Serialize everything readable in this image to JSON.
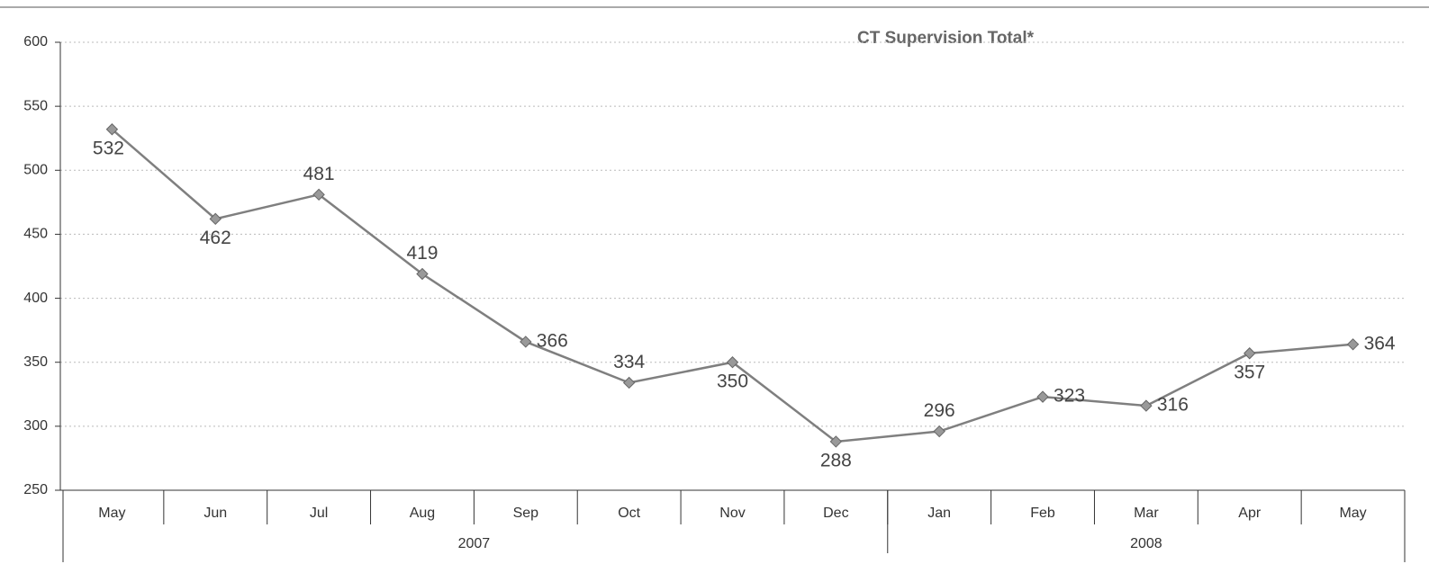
{
  "chart_data": {
    "type": "line",
    "title": "CT Supervision Total*",
    "groups": [
      {
        "name": "2007",
        "categories": [
          "May",
          "Jun",
          "Jul",
          "Aug",
          "Sep",
          "Oct",
          "Nov",
          "Dec"
        ]
      },
      {
        "name": "2008",
        "categories": [
          "Jan",
          "Feb",
          "Mar",
          "Apr",
          "May"
        ]
      }
    ],
    "values": [
      532,
      462,
      481,
      419,
      366,
      334,
      350,
      288,
      296,
      323,
      316,
      357,
      364
    ],
    "color": "#7f7f7f",
    "ylim": [
      250,
      600
    ],
    "yticks": [
      250,
      300,
      350,
      400,
      450,
      500,
      550,
      600
    ],
    "grid": true
  }
}
